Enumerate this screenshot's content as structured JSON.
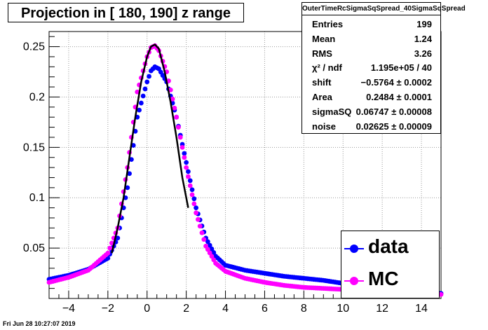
{
  "title": "Projection in [ 180, 190] z range",
  "stats_box": {
    "header": "OuterTimeRcSigmaSqSpread_40SigmaSqSpread",
    "rows": [
      {
        "key": "Entries",
        "value": "199"
      },
      {
        "key": "Mean",
        "value": "1.24"
      },
      {
        "key": "RMS",
        "value": "3.26"
      },
      {
        "key": "χ² / ndf",
        "value": "1.195e+05 / 40"
      },
      {
        "key": "shift",
        "value": "−0.5764 ± 0.0002"
      },
      {
        "key": "Area",
        "value": "0.2484 ± 0.0001"
      },
      {
        "key": "sigmaSQ",
        "value": "0.06747 ± 0.00008"
      },
      {
        "key": "noise",
        "value": "0.02625 ± 0.00009"
      }
    ]
  },
  "legend": {
    "placement": "bottom-right",
    "items": [
      {
        "label": "data",
        "color": "#0000ff"
      },
      {
        "label": "MC",
        "color": "#ff00ff"
      }
    ]
  },
  "datestamp": "Fri Jun 28 10:27:07 2019",
  "chart_data": {
    "type": "scatter",
    "xlim": [
      -5,
      15
    ],
    "ylim": [
      0,
      0.265
    ],
    "grid": true,
    "x_ticks": [
      -4,
      -2,
      0,
      2,
      4,
      6,
      8,
      10,
      12,
      14
    ],
    "y_ticks": [
      0.05,
      0.1,
      0.15,
      0.2,
      0.25
    ],
    "x_tick_labels": [
      "−4",
      "−2",
      "0",
      "2",
      "4",
      "6",
      "8",
      "10",
      "12",
      "14"
    ],
    "y_tick_labels": [
      "0.05",
      "0.1",
      "0.15",
      "0.2",
      "0.25"
    ],
    "series": [
      {
        "name": "data",
        "color": "#0000ff",
        "x": [
          -5,
          -4,
          -3,
          -2,
          -1.5,
          -1,
          -0.5,
          0,
          0.2,
          0.4,
          0.6,
          1,
          1.5,
          2,
          2.5,
          3,
          3.5,
          4,
          5,
          6,
          7,
          8,
          9,
          10,
          11,
          12,
          13,
          14,
          15
        ],
        "y": [
          0.019,
          0.023,
          0.029,
          0.04,
          0.06,
          0.11,
          0.18,
          0.215,
          0.226,
          0.23,
          0.228,
          0.215,
          0.18,
          0.135,
          0.09,
          0.06,
          0.042,
          0.033,
          0.028,
          0.025,
          0.022,
          0.02,
          0.018,
          0.015,
          0.013,
          0.011,
          0.009,
          0.007,
          0.005
        ]
      },
      {
        "name": "MC",
        "color": "#ff00ff",
        "x": [
          -5,
          -4,
          -3,
          -2,
          -1.5,
          -1,
          -0.5,
          0,
          0.2,
          0.4,
          0.6,
          1,
          1.5,
          2,
          2.5,
          3,
          3.5,
          4,
          5,
          6,
          7,
          8,
          9,
          10,
          11,
          12,
          13,
          14,
          15
        ],
        "y": [
          0.016,
          0.021,
          0.028,
          0.045,
          0.07,
          0.13,
          0.205,
          0.24,
          0.249,
          0.251,
          0.246,
          0.225,
          0.18,
          0.13,
          0.085,
          0.052,
          0.035,
          0.027,
          0.02,
          0.016,
          0.013,
          0.011,
          0.01,
          0.009,
          0.008,
          0.007,
          0.006,
          0.005,
          0.004
        ]
      },
      {
        "color": "#000000",
        "style": "line",
        "x": [
          -1.8,
          -1.5,
          -1.2,
          -0.9,
          -0.6,
          -0.3,
          0,
          0.2,
          0.4,
          0.6,
          0.9,
          1.2,
          1.5,
          1.8,
          2.1
        ],
        "y": [
          0.045,
          0.07,
          0.1,
          0.14,
          0.18,
          0.215,
          0.24,
          0.25,
          0.252,
          0.248,
          0.225,
          0.195,
          0.16,
          0.12,
          0.09
        ]
      }
    ]
  }
}
